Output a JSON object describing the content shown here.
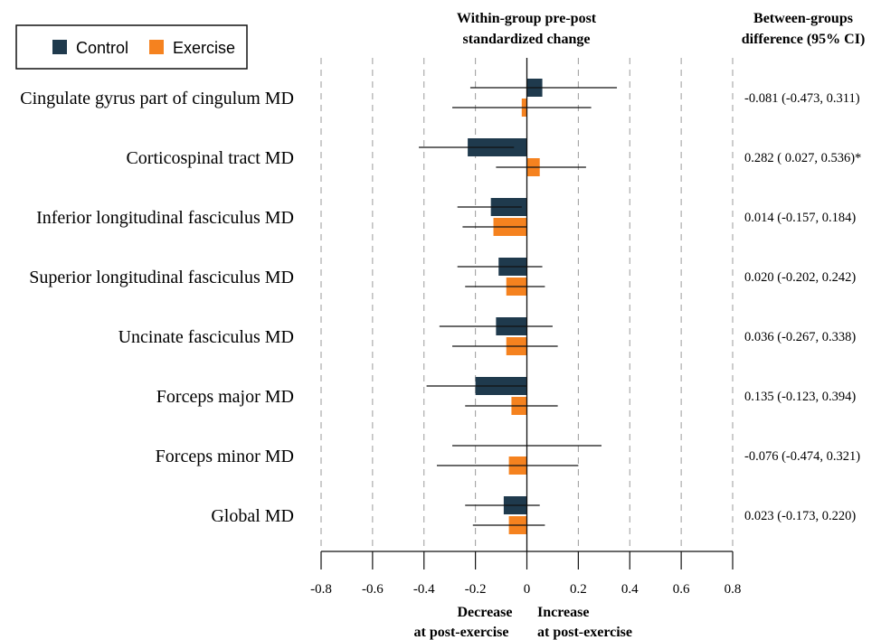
{
  "chart_data": {
    "type": "bar",
    "orientation": "horizontal",
    "categories": [
      "Cingulate gyrus part of cingulum MD",
      "Corticospinal tract MD",
      "Inferior longitudinal fasciculus MD",
      "Superior longitudinal fasciculus MD",
      "Uncinate fasciculus MD",
      "Forceps major MD",
      "Forceps minor MD",
      "Global MD"
    ],
    "series": [
      {
        "name": "Control",
        "color": "#1f3a4d",
        "values": [
          0.06,
          -0.23,
          -0.14,
          -0.11,
          -0.12,
          -0.2,
          0.0,
          -0.09
        ],
        "ci_low": [
          -0.22,
          -0.42,
          -0.27,
          -0.27,
          -0.34,
          -0.39,
          -0.29,
          -0.24
        ],
        "ci_high": [
          0.35,
          -0.05,
          -0.02,
          0.06,
          0.1,
          0.0,
          0.29,
          0.05
        ]
      },
      {
        "name": "Exercise",
        "color": "#f5821f",
        "values": [
          -0.02,
          0.05,
          -0.13,
          -0.08,
          -0.08,
          -0.06,
          -0.07,
          -0.07
        ],
        "ci_low": [
          -0.29,
          -0.12,
          -0.25,
          -0.24,
          -0.29,
          -0.24,
          -0.35,
          -0.21
        ],
        "ci_high": [
          0.25,
          0.23,
          0.0,
          0.07,
          0.12,
          0.12,
          0.2,
          0.07
        ]
      }
    ],
    "between_groups": [
      "-0.081 (-0.473, 0.311)",
      "0.282 ( 0.027, 0.536)*",
      "0.014 (-0.157, 0.184)",
      "0.020 (-0.202, 0.242)",
      "0.036 (-0.267, 0.338)",
      "0.135 (-0.123, 0.394)",
      "-0.076 (-0.474, 0.321)",
      "0.023 (-0.173, 0.220)"
    ],
    "header_center_lines": [
      "Within-group pre-post",
      "standardized change"
    ],
    "header_right_lines": [
      "Between-groups",
      "difference (95% CI)"
    ],
    "xlim": [
      -0.8,
      0.8
    ],
    "xticks": [
      -0.8,
      -0.6,
      -0.4,
      -0.2,
      0,
      0.2,
      0.4,
      0.6,
      0.8
    ],
    "xtick_labels": [
      "-0.8",
      "-0.6",
      "-0.4",
      "-0.2",
      "0",
      "0.2",
      "0.4",
      "0.6",
      "0.8"
    ],
    "gridlines": "dashed vertical",
    "legend_position": "top-left",
    "footer_left_lines": [
      "Decrease",
      "at post-exercise"
    ],
    "footer_right_lines": [
      "Increase",
      "at post-exercise"
    ]
  }
}
